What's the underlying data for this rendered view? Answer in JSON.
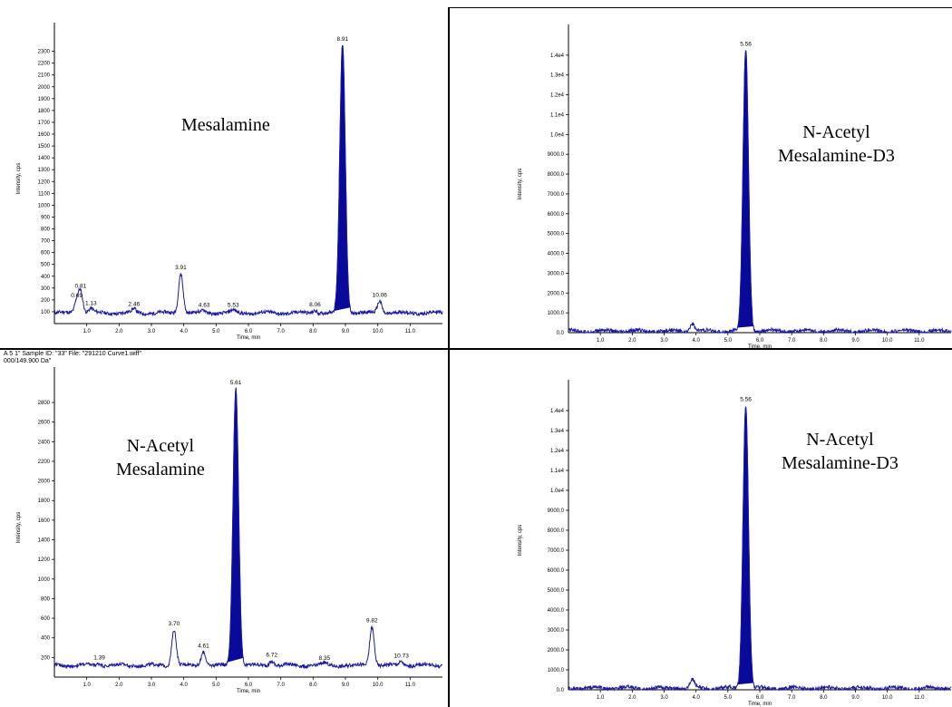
{
  "figure": {
    "caption_line1": "A 5 1\"   Sample ID: \"33\"   File: \"291210 Curve1.wiff\"",
    "caption_line2": "000/149.900 Da\""
  },
  "chart_data": [
    {
      "type": "line",
      "compound": [
        "Mesalamine"
      ],
      "xlabel": "Time, min",
      "ylabel": "Intensity, cps",
      "xlim": [
        0,
        12
      ],
      "ylim": [
        0,
        2450
      ],
      "xticks": [
        "1.0",
        "2.0",
        "3.0",
        "4.0",
        "5.0",
        "6.0",
        "7.0",
        "8.0",
        "9.0",
        "10.0",
        "11.0"
      ],
      "yticks": [
        "100",
        "200",
        "300",
        "400",
        "500",
        "600",
        "700",
        "800",
        "900",
        "1000",
        "1100",
        "1200",
        "1300",
        "1400",
        "1500",
        "1600",
        "1700",
        "1800",
        "1900",
        "2000",
        "2100",
        "2200",
        "2300"
      ],
      "baseline": 90,
      "peaks": [
        {
          "rt": 0.69,
          "height": 190,
          "label": "0.69"
        },
        {
          "rt": 0.81,
          "height": 270,
          "label": "0.81"
        },
        {
          "rt": 1.13,
          "height": 125,
          "label": "1.13"
        },
        {
          "rt": 2.46,
          "height": 120,
          "label": "2.46"
        },
        {
          "rt": 3.91,
          "height": 430,
          "label": "3.91"
        },
        {
          "rt": 4.63,
          "height": 110,
          "label": "4.63"
        },
        {
          "rt": 5.53,
          "height": 110,
          "label": "5.53"
        },
        {
          "rt": 8.06,
          "height": 115,
          "label": "8.06"
        },
        {
          "rt": 8.91,
          "height": 2360,
          "label": "8.91",
          "filled": true
        },
        {
          "rt": 10.06,
          "height": 195,
          "label": "10.06"
        }
      ]
    },
    {
      "type": "line",
      "compound": [
        "N-Acetyl",
        "Mesalamine-D3"
      ],
      "xlabel": "Time, min",
      "ylabel": "Intensity, cps",
      "xlim": [
        0,
        12
      ],
      "ylim": [
        0,
        15000
      ],
      "xticks": [
        "1.0",
        "2.0",
        "3.0",
        "4.0",
        "5.0",
        "6.0",
        "7.0",
        "8.0",
        "9.0",
        "10.0",
        "11.0"
      ],
      "yticks": [
        "1000.0",
        "2000.0",
        "3000.0",
        "4000.0",
        "5000.0",
        "6000.0",
        "7000.0",
        "8000.0",
        "9000.0",
        "1.0e4",
        "1.1e4",
        "1.2e4",
        "1.3e4",
        "1.4e4"
      ],
      "baseline": 80,
      "peaks": [
        {
          "rt": 3.88,
          "height": 500,
          "label": ""
        },
        {
          "rt": 5.56,
          "height": 14300,
          "label": "5.56",
          "filled": true
        }
      ]
    },
    {
      "type": "line",
      "compound": [
        "N-Acetyl",
        "Mesalamine"
      ],
      "xlabel": "Time, min",
      "ylabel": "Intensity, cps",
      "xlim": [
        0,
        12
      ],
      "ylim": [
        0,
        3050
      ],
      "xticks": [
        "1.0",
        "2.0",
        "3.0",
        "4.0",
        "5.0",
        "6.0",
        "7.0",
        "8.0",
        "9.0",
        "10.0",
        "11.0"
      ],
      "yticks": [
        "200",
        "400",
        "600",
        "800",
        "1000",
        "1200",
        "1400",
        "1600",
        "1800",
        "2000",
        "2200",
        "2400",
        "2600",
        "2800"
      ],
      "baseline": 120,
      "peaks": [
        {
          "rt": 1.39,
          "height": 145,
          "label": "1.39"
        },
        {
          "rt": 3.7,
          "height": 490,
          "label": "3.70"
        },
        {
          "rt": 4.61,
          "height": 265,
          "label": "4.61"
        },
        {
          "rt": 5.61,
          "height": 2950,
          "label": "5.61",
          "filled": true
        },
        {
          "rt": 6.72,
          "height": 170,
          "label": "6.72"
        },
        {
          "rt": 8.35,
          "height": 140,
          "label": "8.35"
        },
        {
          "rt": 9.82,
          "height": 520,
          "label": "9.82"
        },
        {
          "rt": 10.73,
          "height": 160,
          "label": "10.73"
        }
      ]
    },
    {
      "type": "line",
      "compound": [
        "N-Acetyl",
        "Mesalamine-D3"
      ],
      "xlabel": "Time, min",
      "ylabel": "Intensity, cps",
      "xlim": [
        0,
        12
      ],
      "ylim": [
        0,
        15000
      ],
      "xticks": [
        "1.0",
        "2.0",
        "3.0",
        "4.0",
        "5.0",
        "6.0",
        "7.0",
        "8.0",
        "9.0",
        "10.0",
        "11.0"
      ],
      "yticks": [
        "1000.0",
        "2000.0",
        "3000.0",
        "4000.0",
        "5000.0",
        "6000.0",
        "7000.0",
        "8000.0",
        "9000.0",
        "1.0e4",
        "1.1e4",
        "1.2e4",
        "1.3e4",
        "1.4e4"
      ],
      "baseline": 80,
      "peaks": [
        {
          "rt": 3.88,
          "height": 500,
          "label": ""
        },
        {
          "rt": 5.56,
          "height": 14300,
          "label": "5.56",
          "filled": true
        }
      ]
    }
  ]
}
